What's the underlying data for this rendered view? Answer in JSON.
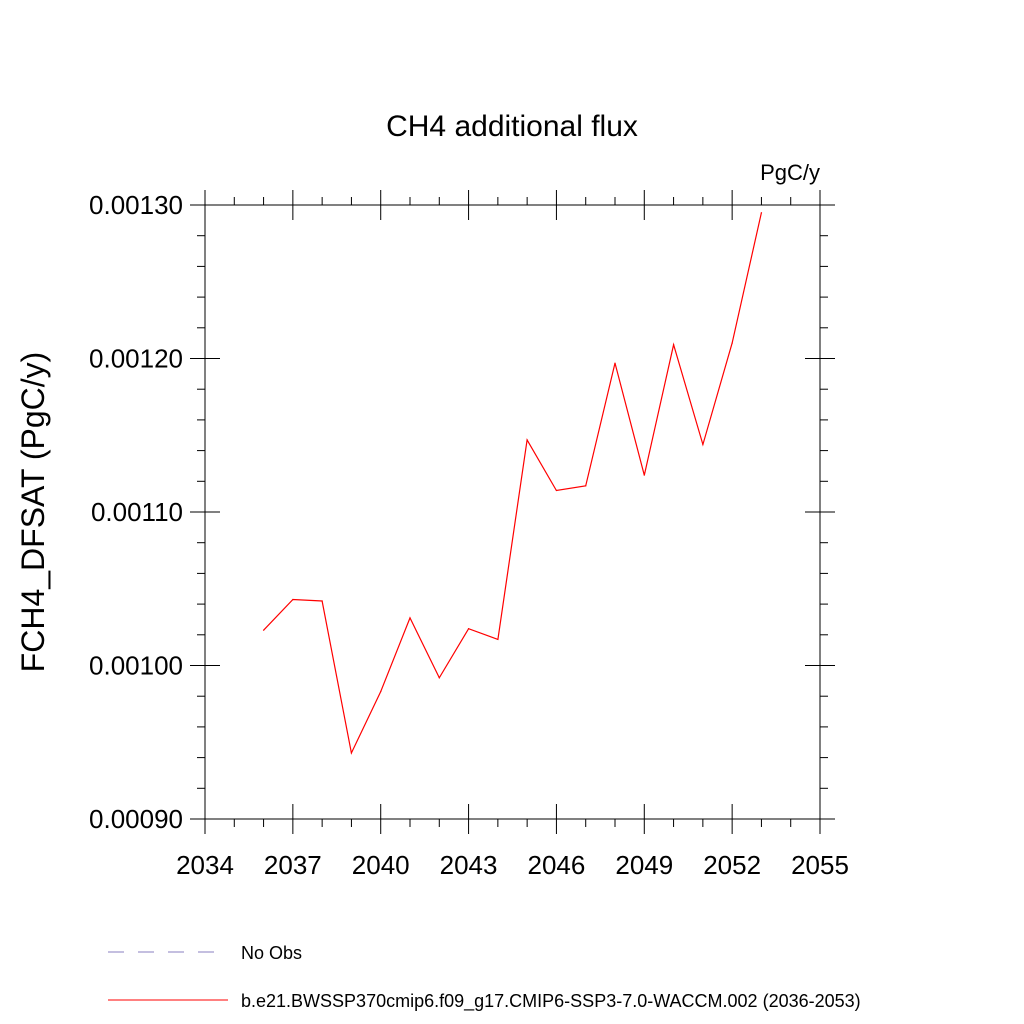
{
  "chart_data": {
    "type": "line",
    "title": "CH4 additional flux",
    "units_label": "PgC/y",
    "ylabel": "FCH4_DFSAT  (PgC/y)",
    "xlabel": "",
    "xlim": [
      2034,
      2055
    ],
    "ylim": [
      0.0009,
      0.0013
    ],
    "x_ticks": [
      2034,
      2037,
      2040,
      2043,
      2046,
      2049,
      2052,
      2055
    ],
    "x_tick_labels": [
      "2034",
      "2037",
      "2040",
      "2043",
      "2046",
      "2049",
      "2052",
      "2055"
    ],
    "y_ticks": [
      0.0009,
      0.001,
      0.0011,
      0.0012,
      0.0013
    ],
    "y_tick_labels": [
      "0.00090",
      "0.00100",
      "0.00110",
      "0.00120",
      "0.00130"
    ],
    "grid": false,
    "legend_placement": "bottom",
    "series": [
      {
        "name": "b.e21.BWSSP370cmip6.f09_g17.CMIP6-SSP3-7.0-WACCM.002 (2036-2053)",
        "color": "#ff0000",
        "style": "solid",
        "x": [
          2036,
          2037,
          2038,
          2039,
          2040,
          2041,
          2042,
          2043,
          2044,
          2045,
          2046,
          2047,
          2048,
          2049,
          2050,
          2051,
          2052,
          2053
        ],
        "values": [
          0.001023,
          0.001043,
          0.001042,
          0.000943,
          0.000983,
          0.001031,
          0.000992,
          0.001024,
          0.001017,
          0.001147,
          0.001114,
          0.001117,
          0.001197,
          0.001124,
          0.001209,
          0.001144,
          0.00121,
          0.001295
        ]
      }
    ],
    "legend": [
      {
        "label": "No Obs",
        "color": "#8a7fc0",
        "style": "dashed"
      },
      {
        "label": "b.e21.BWSSP370cmip6.f09_g17.CMIP6-SSP3-7.0-WACCM.002 (2036-2053)",
        "color": "#ff0000",
        "style": "solid"
      }
    ]
  }
}
